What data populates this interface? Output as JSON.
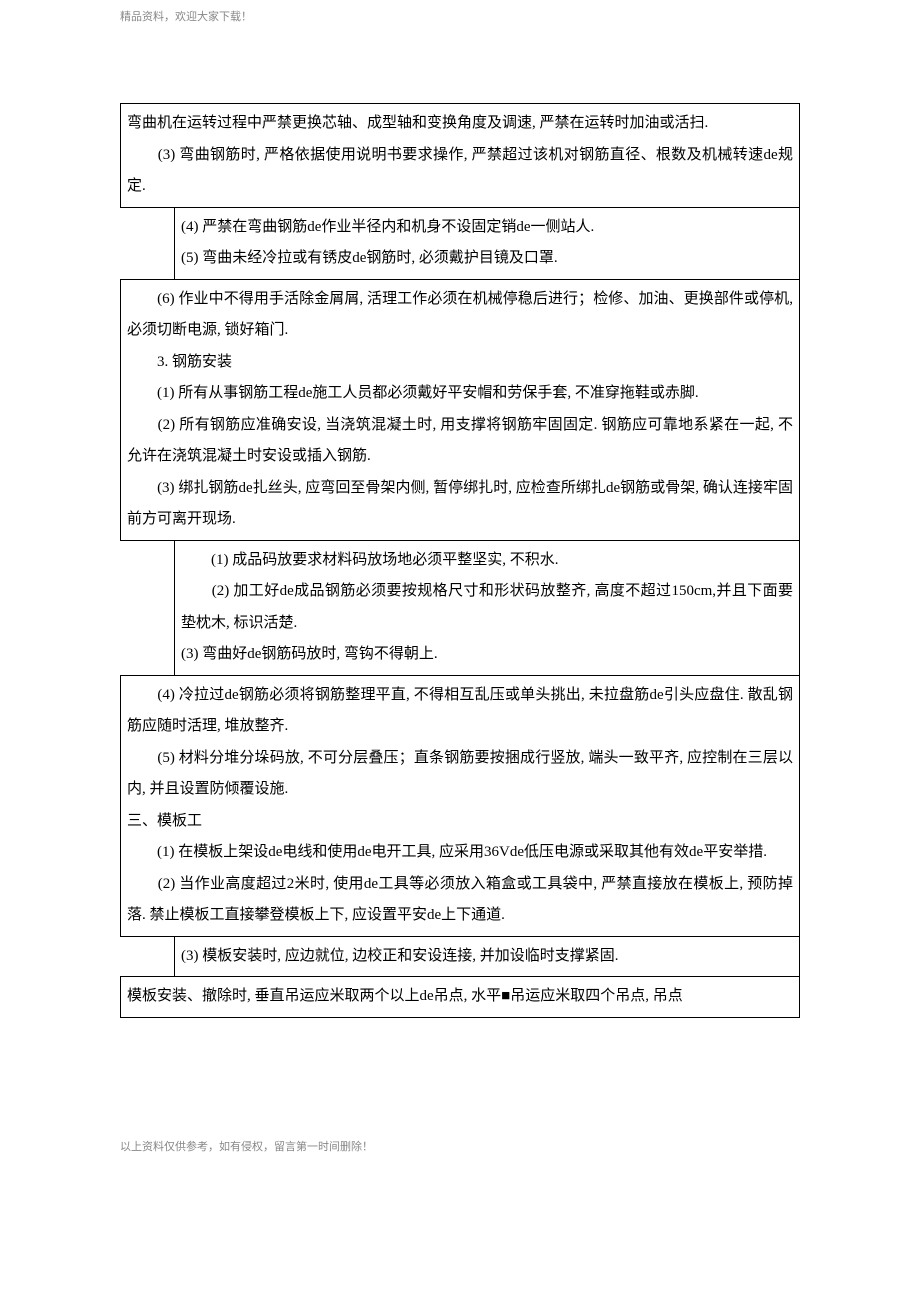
{
  "header_note": "精品资料，欢迎大家下载！",
  "footer_note": "以上资料仅供参考，如有侵权，留言第一时间删除！",
  "cells": [
    {
      "style": "full",
      "lines": [
        "弯曲机在运转过程中严禁更换芯轴、成型轴和变换角度及调速, 严禁在运转时加油或活扫.",
        "　　(3)  弯曲钢筋时, 严格依据使用说明书要求操作, 严禁超过该机对钢筋直径、根数及机械转速de规定."
      ]
    },
    {
      "style": "right",
      "lines": [
        "(4)  严禁在弯曲钢筋de作业半径内和机身不设固定销de一侧站人.",
        "(5)  弯曲未经冷拉或有锈皮de钢筋时, 必须戴护目镜及口罩."
      ]
    },
    {
      "style": "full",
      "lines": [
        "　　(6)  作业中不得用手活除金屑屑, 活理工作必须在机械停稳后进行；检修、加油、更换部件或停机, 必须切断电源, 锁好箱门.",
        "　　3.  钢筋安装",
        "　　(1)  所有从事钢筋工程de施工人员都必须戴好平安帽和劳保手套, 不准穿拖鞋或赤脚.",
        "　　(2)  所有钢筋应准确安设, 当浇筑混凝土时, 用支撑将钢筋牢固固定. 钢筋应可靠地系紧在一起, 不允许在浇筑混凝土时安设或插入钢筋.",
        "　　(3)  绑扎钢筋de扎丝头, 应弯回至骨架内侧, 暂停绑扎时, 应检查所绑扎de钢筋或骨架, 确认连接牢固前方可离开现场."
      ]
    },
    {
      "style": "right",
      "lines": [
        "　　(1)  成品码放要求材料码放场地必须平整坚实, 不积水.",
        "　　(2)  加工好de成品钢筋必须要按规格尺寸和形状码放整齐, 高度不超过150cm,并且下面要垫枕木, 标识活楚.",
        "(3)  弯曲好de钢筋码放时, 弯钩不得朝上."
      ]
    },
    {
      "style": "full",
      "lines": [
        "　　(4)  冷拉过de钢筋必须将钢筋整理平直, 不得相互乱压或单头挑出, 未拉盘筋de引头应盘住. 散乱钢筋应随时活理, 堆放整齐.",
        "　　(5)  材料分堆分垛码放, 不可分层叠压；直条钢筋要按捆成行竖放, 端头一致平齐, 应控制在三层以内, 并且设置防倾覆设施.",
        "三、模板工",
        "　　(1)  在模板上架设de电线和使用de电开工具, 应采用36Vde低压电源或采取其他有效de平安举措.",
        "　　(2)  当作业高度超过2米时, 使用de工具等必须放入箱盒或工具袋中, 严禁直接放在模板上, 预防掉落. 禁止模板工直接攀登模板上下, 应设置平安de上下通道."
      ]
    },
    {
      "style": "right",
      "lines": [
        "(3)  模板安装时, 应边就位, 边校正和安设连接, 并加设临时支撑紧固."
      ]
    },
    {
      "style": "full",
      "lines": [
        "模板安装、撤除时, 垂直吊运应米取两个以上de吊点, 水平■吊运应米取四个吊点, 吊点"
      ]
    }
  ]
}
